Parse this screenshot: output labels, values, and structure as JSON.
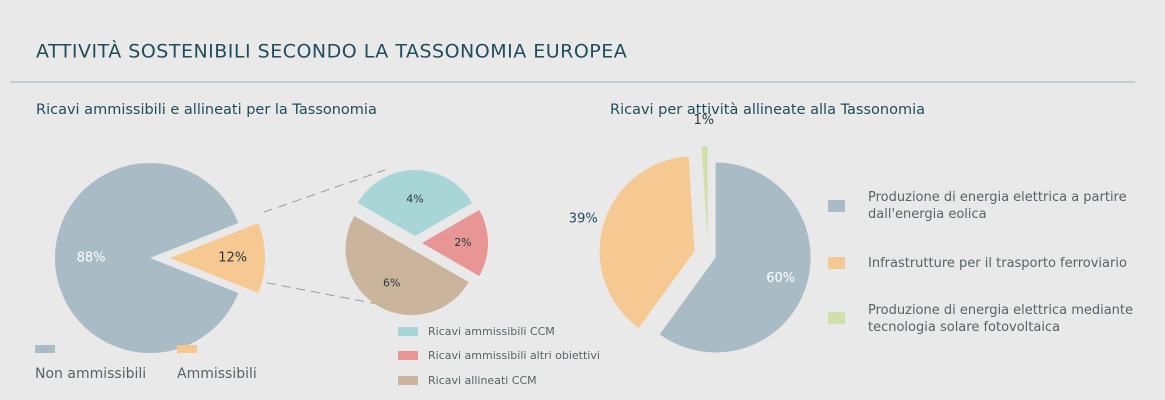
{
  "title": "ATTIVITÀ SOSTENIBILI SECONDO LA TASSONOMIA EUROPEA",
  "chart_data": [
    {
      "type": "pie",
      "title": "Ricavi ammissibili e allineati per la Tassonomia",
      "categories": [
        "Non ammissibili",
        "Ammissibili"
      ],
      "values": [
        88,
        12
      ],
      "value_labels": [
        "88%",
        "12%"
      ],
      "colors": [
        "#a9bcc6",
        "#f6c993"
      ]
    },
    {
      "type": "pie",
      "categories": [
        "Ricavi ammissibili CCM",
        "Ricavi ammissibili altri obiettivi",
        "Ricavi allineati CCM"
      ],
      "values": [
        4,
        2,
        6
      ],
      "value_labels": [
        "4%",
        "2%",
        "6%"
      ],
      "colors": [
        "#a8d5d5",
        "#e89595",
        "#cab49c"
      ]
    },
    {
      "type": "pie",
      "title": "Ricavi per attività allineate alla Tassonomia",
      "categories": [
        "Produzione di energia elettrica a partire dall'energia eolica",
        "Infrastrutture per il trasporto ferroviario",
        "Produzione di energia elettrica mediante tecnologia solare fotovoltaica"
      ],
      "values": [
        60,
        39,
        1
      ],
      "value_labels": [
        "60%",
        "39%",
        "1%"
      ],
      "colors": [
        "#a9bcc6",
        "#f6c993",
        "#cfe0a8"
      ]
    }
  ]
}
